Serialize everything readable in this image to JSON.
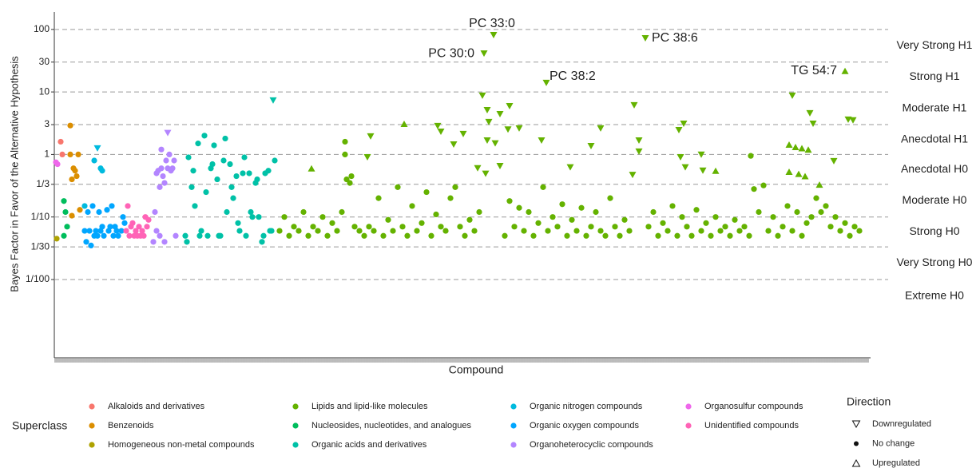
{
  "chart_data": {
    "type": "scatter",
    "y_label": "Bayes Factor in Favor of the Alternative Hypothesis",
    "x_label": "Compound",
    "log_y": true,
    "grid": true,
    "xlim": [
      0,
      510
    ],
    "ylim": [
      0.00056,
      190
    ],
    "yticks": [
      100,
      30,
      10,
      3,
      1,
      {
        "value": 0.3333,
        "label": "1/3"
      },
      {
        "value": 0.1,
        "label": "1/10"
      },
      {
        "value": 0.0333,
        "label": "1/30"
      },
      {
        "value": 0.01,
        "label": "1/100"
      }
    ],
    "bands": [
      "Very Strong H1",
      "Strong H1",
      "Moderate H1",
      "Anecdotal H1",
      "Anecdotal H0",
      "Moderate H0",
      "Strong H0",
      "Very Strong H0",
      "Extreme H0"
    ],
    "legend_title": "Superclass",
    "direction_legend": {
      "title": "Direction",
      "items": [
        "Downregulated",
        "No change",
        "Upregulated"
      ]
    },
    "annotations": [
      {
        "text": "PC 33:0",
        "x": 275,
        "y": 81
      },
      {
        "text": "PC 30:0",
        "x": 269,
        "y": 41
      },
      {
        "text": "PC 38:6",
        "x": 370,
        "y": 72
      },
      {
        "text": "PC 38:2",
        "x": 308,
        "y": 13.9
      },
      {
        "text": "TG 54:7",
        "x": 495,
        "y": 21.7
      }
    ],
    "series": [
      {
        "name": "Alkaloids and derivatives",
        "color": "#F8766D",
        "x": [
          4,
          5
        ],
        "values": [
          1.6,
          1.0
        ],
        "direction": [
          "No change",
          "No change"
        ]
      },
      {
        "name": "Benzenoids",
        "color": "#DB8E00",
        "x": [
          10,
          10,
          15,
          12,
          13,
          14,
          11,
          16,
          11
        ],
        "values": [
          2.9,
          1.0,
          1.0,
          0.6,
          0.55,
          0.45,
          0.4,
          0.13,
          0.105
        ],
        "direction": [
          "No change",
          "No change",
          "No change",
          "No change",
          "No change",
          "No change",
          "No change",
          "No change",
          "No change"
        ]
      },
      {
        "name": "Homogeneous non-metal compounds",
        "color": "#AEA200",
        "x": [
          1.5
        ],
        "values": [
          0.045
        ],
        "direction": [
          "No change"
        ]
      },
      {
        "name": "Lipids and lipid-like molecules",
        "color": "#64B200",
        "x": [
          141,
          144,
          147,
          150,
          153,
          156,
          159,
          162,
          165,
          168,
          171,
          174,
          177,
          180,
          182,
          182,
          183,
          185,
          186,
          188,
          191,
          194,
          197,
          200,
          203,
          206,
          209,
          212,
          215,
          218,
          221,
          224,
          227,
          230,
          233,
          236,
          239,
          242,
          245,
          248,
          251,
          254,
          257,
          260,
          263,
          266,
          282,
          285,
          288,
          291,
          294,
          297,
          300,
          303,
          306,
          309,
          312,
          315,
          318,
          321,
          324,
          327,
          330,
          333,
          336,
          339,
          342,
          345,
          348,
          351,
          354,
          357,
          360,
          372,
          375,
          378,
          381,
          384,
          387,
          390,
          393,
          396,
          399,
          402,
          405,
          408,
          411,
          414,
          417,
          420,
          423,
          426,
          429,
          432,
          435,
          436,
          438,
          441,
          444,
          447,
          450,
          453,
          456,
          459,
          462,
          465,
          468,
          471,
          474,
          477,
          480,
          483,
          486,
          489,
          492,
          495,
          498,
          501,
          504,
          198,
          196,
          240,
          242,
          250,
          256,
          268,
          269,
          275,
          271,
          272,
          271,
          276,
          279,
          285,
          284,
          291,
          279,
          270,
          265,
          305,
          308,
          323,
          342,
          336,
          363,
          366,
          366,
          362,
          370,
          391,
          394,
          392,
          406,
          405,
          395,
          462,
          475,
          473,
          488,
          497,
          500,
          161,
          219,
          414,
          495,
          460,
          464,
          468,
          472,
          460,
          466,
          470,
          479
        ],
        "values": [
          0.06,
          0.1,
          0.05,
          0.07,
          0.06,
          0.12,
          0.05,
          0.07,
          0.06,
          0.1,
          0.05,
          0.08,
          0.06,
          0.12,
          1.6,
          1.0,
          0.4,
          0.35,
          0.45,
          0.07,
          0.06,
          0.05,
          0.07,
          0.06,
          0.2,
          0.05,
          0.09,
          0.06,
          0.3,
          0.07,
          0.05,
          0.15,
          0.06,
          0.08,
          0.25,
          0.05,
          0.11,
          0.07,
          0.06,
          0.2,
          0.3,
          0.07,
          0.05,
          0.09,
          0.06,
          0.12,
          0.05,
          0.18,
          0.07,
          0.14,
          0.06,
          0.12,
          0.05,
          0.08,
          0.3,
          0.06,
          0.1,
          0.07,
          0.16,
          0.05,
          0.09,
          0.06,
          0.14,
          0.05,
          0.07,
          0.12,
          0.06,
          0.05,
          0.2,
          0.07,
          0.05,
          0.09,
          0.06,
          0.07,
          0.12,
          0.05,
          0.08,
          0.06,
          0.15,
          0.05,
          0.1,
          0.07,
          0.05,
          0.13,
          0.06,
          0.08,
          0.05,
          0.1,
          0.06,
          0.07,
          0.05,
          0.09,
          0.06,
          0.07,
          0.05,
          0.95,
          0.28,
          0.12,
          0.32,
          0.06,
          0.1,
          0.05,
          0.07,
          0.15,
          0.06,
          0.12,
          0.05,
          0.08,
          0.1,
          0.2,
          0.12,
          0.15,
          0.07,
          0.1,
          0.06,
          0.08,
          0.05,
          0.07,
          0.06,
          1.94,
          0.9,
          2.84,
          2.31,
          1.44,
          2.12,
          8.7,
          41,
          81,
          5.1,
          3.3,
          1.67,
          1.5,
          4.4,
          5.9,
          2.5,
          2.6,
          0.65,
          0.49,
          0.6,
          1.67,
          13.9,
          0.62,
          2.6,
          1.36,
          6.1,
          1.67,
          1.11,
          0.47,
          72,
          2.45,
          3.1,
          0.9,
          0.55,
          0.99,
          0.62,
          8.7,
          3.1,
          4.55,
          0.78,
          3.6,
          3.5,
          0.6,
          3.1,
          0.55,
          21.7,
          1.44,
          1.32,
          1.26,
          1.2,
          0.53,
          0.49,
          0.45,
          0.33
        ],
        "direction": [
          "No change",
          "No change",
          "No change",
          "No change",
          "No change",
          "No change",
          "No change",
          "No change",
          "No change",
          "No change",
          "No change",
          "No change",
          "No change",
          "No change",
          "No change",
          "No change",
          "No change",
          "No change",
          "No change",
          "No change",
          "No change",
          "No change",
          "No change",
          "No change",
          "No change",
          "No change",
          "No change",
          "No change",
          "No change",
          "No change",
          "No change",
          "No change",
          "No change",
          "No change",
          "No change",
          "No change",
          "No change",
          "No change",
          "No change",
          "No change",
          "No change",
          "No change",
          "No change",
          "No change",
          "No change",
          "No change",
          "No change",
          "No change",
          "No change",
          "No change",
          "No change",
          "No change",
          "No change",
          "No change",
          "No change",
          "No change",
          "No change",
          "No change",
          "No change",
          "No change",
          "No change",
          "No change",
          "No change",
          "No change",
          "No change",
          "No change",
          "No change",
          "No change",
          "No change",
          "No change",
          "No change",
          "No change",
          "No change",
          "No change",
          "No change",
          "No change",
          "No change",
          "No change",
          "No change",
          "No change",
          "No change",
          "No change",
          "No change",
          "No change",
          "No change",
          "No change",
          "No change",
          "No change",
          "No change",
          "No change",
          "No change",
          "No change",
          "No change",
          "No change",
          "No change",
          "No change",
          "No change",
          "No change",
          "No change",
          "No change",
          "No change",
          "No change",
          "No change",
          "No change",
          "No change",
          "No change",
          "No change",
          "No change",
          "No change",
          "No change",
          "No change",
          "No change",
          "No change",
          "No change",
          "No change",
          "No change",
          "No change",
          "No change",
          "No change",
          "Downregulated",
          "Downregulated",
          "Downregulated",
          "Downregulated",
          "Downregulated",
          "Downregulated",
          "Downregulated",
          "Downregulated",
          "Downregulated",
          "Downregulated",
          "Downregulated",
          "Downregulated",
          "Downregulated",
          "Downregulated",
          "Downregulated",
          "Downregulated",
          "Downregulated",
          "Downregulated",
          "Downregulated",
          "Downregulated",
          "Downregulated",
          "Downregulated",
          "Downregulated",
          "Downregulated",
          "Downregulated",
          "Downregulated",
          "Downregulated",
          "Downregulated",
          "Downregulated",
          "Downregulated",
          "Downregulated",
          "Downregulated",
          "Downregulated",
          "Downregulated",
          "Downregulated",
          "Downregulated",
          "Downregulated",
          "Downregulated",
          "Downregulated",
          "Downregulated",
          "Downregulated",
          "Downregulated",
          "Upregulated",
          "Upregulated",
          "Upregulated",
          "Upregulated",
          "Upregulated",
          "Upregulated",
          "Upregulated",
          "Upregulated",
          "Upregulated",
          "Upregulated",
          "Upregulated",
          "Upregulated"
        ]
      },
      {
        "name": "Nucleosides, nucleotides, and analogues",
        "color": "#00BD5C",
        "x": [
          6,
          7,
          8,
          6
        ],
        "values": [
          0.18,
          0.12,
          0.07,
          0.05
        ],
        "direction": [
          "No change",
          "No change",
          "No change",
          "No change"
        ]
      },
      {
        "name": "Organic acids and derivatives",
        "color": "#00C1A7",
        "x": [
          82,
          84,
          86,
          88,
          90,
          92,
          94,
          96,
          98,
          100,
          102,
          104,
          106,
          108,
          110,
          112,
          114,
          116,
          118,
          120,
          122,
          124,
          126,
          128,
          130,
          132,
          134,
          136,
          138,
          83,
          87,
          91,
          95,
          99,
          103,
          107,
          111,
          115,
          119,
          123,
          127,
          131,
          135,
          137
        ],
        "values": [
          0.05,
          0.9,
          0.3,
          0.15,
          1.5,
          0.06,
          2.0,
          0.05,
          0.6,
          1.4,
          0.4,
          0.05,
          0.8,
          0.12,
          0.7,
          0.2,
          0.45,
          0.06,
          0.5,
          0.05,
          0.5,
          0.1,
          0.35,
          0.1,
          0.04,
          0.5,
          0.55,
          0.06,
          0.8,
          0.04,
          0.55,
          0.05,
          0.25,
          0.7,
          0.05,
          1.8,
          0.3,
          0.08,
          0.9,
          0.12,
          0.4,
          0.05,
          0.06,
          7.3
        ],
        "direction": [
          "No change",
          "No change",
          "No change",
          "No change",
          "No change",
          "No change",
          "No change",
          "No change",
          "No change",
          "No change",
          "No change",
          "No change",
          "No change",
          "No change",
          "No change",
          "No change",
          "No change",
          "No change",
          "No change",
          "No change",
          "No change",
          "No change",
          "No change",
          "No change",
          "No change",
          "No change",
          "No change",
          "No change",
          "No change",
          "No change",
          "No change",
          "No change",
          "No change",
          "No change",
          "No change",
          "No change",
          "No change",
          "No change",
          "No change",
          "No change",
          "No change",
          "No change",
          "No change",
          "Downregulated"
        ]
      },
      {
        "name": "Organic nitrogen compounds",
        "color": "#00BADE",
        "x": [
          27,
          25,
          30,
          29,
          19
        ],
        "values": [
          1.25,
          0.8,
          0.55,
          0.6,
          0.15
        ],
        "direction": [
          "Downregulated",
          "No change",
          "No change",
          "No change",
          "No change"
        ]
      },
      {
        "name": "Organic oxygen compounds",
        "color": "#00A6FF",
        "x": [
          19,
          20,
          22,
          24,
          26,
          27,
          28,
          30,
          31,
          33,
          34,
          36,
          38,
          40,
          42,
          44,
          21,
          25,
          29,
          35,
          39,
          43,
          23,
          37
        ],
        "values": [
          0.06,
          0.04,
          0.06,
          0.15,
          0.06,
          0.05,
          0.12,
          0.07,
          0.05,
          0.13,
          0.06,
          0.15,
          0.07,
          0.05,
          0.06,
          0.08,
          0.12,
          0.05,
          0.06,
          0.07,
          0.06,
          0.1,
          0.035,
          0.05
        ],
        "direction": [
          "No change",
          "No change",
          "No change",
          "No change",
          "No change",
          "No change",
          "No change",
          "No change",
          "No change",
          "No change",
          "No change",
          "No change",
          "No change",
          "No change",
          "No change",
          "No change",
          "No change",
          "No change",
          "No change",
          "No change",
          "No change",
          "No change",
          "No change",
          "No change"
        ]
      },
      {
        "name": "Organoheterocyclic compounds",
        "color": "#B385FF",
        "x": [
          62,
          63,
          64,
          65,
          66,
          67,
          68,
          69,
          70,
          71,
          72,
          73,
          74,
          75,
          76,
          64,
          67,
          69,
          71,
          66
        ],
        "values": [
          0.04,
          0.12,
          0.5,
          0.55,
          0.3,
          1.2,
          0.45,
          0.35,
          0.8,
          0.6,
          1.0,
          0.55,
          0.6,
          0.8,
          0.05,
          0.06,
          0.6,
          0.04,
          2.2,
          0.05
        ],
        "direction": [
          "No change",
          "No change",
          "No change",
          "No change",
          "No change",
          "No change",
          "No change",
          "No change",
          "No change",
          "No change",
          "No change",
          "No change",
          "No change",
          "No change",
          "No change",
          "No change",
          "No change",
          "No change",
          "Downregulated",
          "No change"
        ]
      },
      {
        "name": "Organosulfur compounds",
        "color": "#EF67EB",
        "x": [
          1,
          2
        ],
        "values": [
          0.75,
          0.7
        ],
        "direction": [
          "No change",
          "No change"
        ]
      },
      {
        "name": "Unidentified compounds",
        "color": "#FF63B6",
        "x": [
          45,
          47,
          48,
          50,
          51,
          52,
          53,
          54,
          55,
          56,
          57,
          58,
          59,
          46,
          49
        ],
        "values": [
          0.06,
          0.05,
          0.07,
          0.05,
          0.06,
          0.05,
          0.07,
          0.05,
          0.06,
          0.05,
          0.1,
          0.07,
          0.09,
          0.15,
          0.08
        ],
        "direction": [
          "No change",
          "No change",
          "No change",
          "No change",
          "No change",
          "No change",
          "No change",
          "No change",
          "No change",
          "No change",
          "No change",
          "No change",
          "No change",
          "No change",
          "No change"
        ]
      }
    ]
  }
}
